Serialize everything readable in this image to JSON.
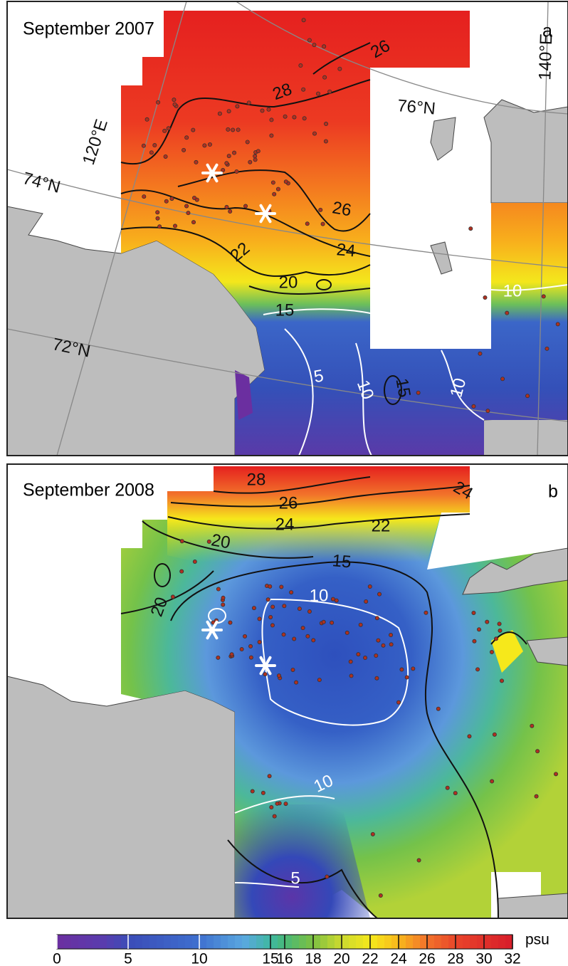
{
  "panels": [
    {
      "title": "September 2007",
      "letter": "a",
      "grid_labels": [
        "76°N",
        "74°N",
        "72°N",
        "120°E",
        "140°E"
      ],
      "contour_labels": [
        26,
        28,
        26,
        24,
        22,
        20,
        15,
        10,
        5,
        10,
        15,
        10
      ]
    },
    {
      "title": "September 2008",
      "letter": "b",
      "contour_labels": [
        28,
        26,
        24,
        22,
        24,
        20,
        15,
        10,
        20,
        10,
        5
      ]
    }
  ],
  "colorbar": {
    "range": [
      0,
      32
    ],
    "ticks": [
      0,
      5,
      10,
      15,
      16,
      18,
      20,
      22,
      24,
      26,
      28,
      30,
      32
    ],
    "unit": "psu"
  }
}
